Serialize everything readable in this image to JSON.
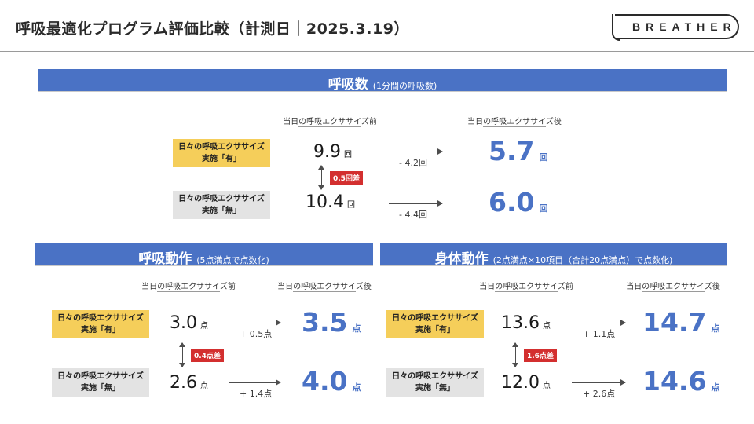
{
  "slide": {
    "title": "呼吸最適化プログラム評価比較（計測日｜2025.3.19）",
    "logo": "BREATHER"
  },
  "column_headers": {
    "before": "当日の呼吸エクササイズ前",
    "after": "当日の呼吸エクササイズ後"
  },
  "labels": {
    "yes_line1": "日々の呼吸エクササイズ",
    "yes_line2": "実施「有」",
    "no_line1": "日々の呼吸エクササイズ",
    "no_line2": "実施「無」"
  },
  "sections": {
    "respiration": {
      "title": "呼吸数",
      "subtitle": "(1分間の呼吸数)",
      "unit": "回",
      "yes": {
        "before": "9.9",
        "after": "5.7",
        "delta": "- 4.2回"
      },
      "no": {
        "before": "10.4",
        "after": "6.0",
        "delta": "- 4.4回"
      },
      "difference": "0.5回差"
    },
    "breathing_motion": {
      "title": "呼吸動作",
      "subtitle": "(5点満点で点数化)",
      "unit": "点",
      "yes": {
        "before": "3.0",
        "after": "3.5",
        "delta": "+ 0.5点"
      },
      "no": {
        "before": "2.6",
        "after": "4.0",
        "delta": "+ 1.4点"
      },
      "difference": "0.4点差"
    },
    "body_motion": {
      "title": "身体動作",
      "subtitle": "(2点満点×10項目（合計20点満点）で点数化)",
      "unit": "点",
      "yes": {
        "before": "13.6",
        "after": "14.7",
        "delta": "+ 1.1点"
      },
      "no": {
        "before": "12.0",
        "after": "14.6",
        "delta": "+ 2.6点"
      },
      "difference": "1.6点差"
    }
  },
  "colors": {
    "band_blue": "#4a72c5",
    "highlight_yellow": "#f5ce5a",
    "neutral_gray": "#e3e3e3",
    "difference_red": "#d32f2f"
  }
}
